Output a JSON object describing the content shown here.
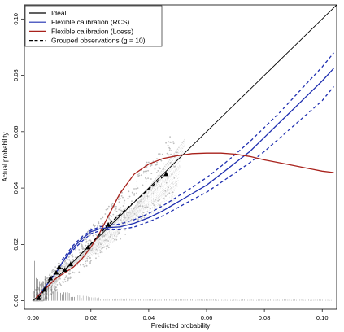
{
  "chart_data": {
    "type": "line",
    "xlabel": "Predicted probability",
    "ylabel": "Actual probability",
    "xlim": [
      -0.003,
      0.105
    ],
    "ylim": [
      -0.003,
      0.105
    ],
    "x_ticks": [
      "0.00",
      "0.02",
      "0.04",
      "0.06",
      "0.08",
      "0.10"
    ],
    "y_ticks": [
      "0.00",
      "0.02",
      "0.04",
      "0.06",
      "0.08",
      "0.10"
    ],
    "legend_position": "top-left",
    "legend": [
      {
        "label": "Ideal",
        "color": "#000000",
        "style": "solid"
      },
      {
        "label": "Flexible calibration (RCS)",
        "color": "#1f2fb0",
        "style": "solid"
      },
      {
        "label": "Flexible calibration (Loess)",
        "color": "#a8211b",
        "style": "solid"
      },
      {
        "label": "Grouped observations (g = 10)",
        "color": "#000000",
        "style": "dashed"
      }
    ],
    "series": [
      {
        "name": "Ideal",
        "color": "#000000",
        "x": [
          0,
          0.105
        ],
        "y": [
          0,
          0.105
        ]
      },
      {
        "name": "Flexible calibration (RCS)",
        "color": "#1f2fb0",
        "x": [
          0.002,
          0.005,
          0.008,
          0.011,
          0.014,
          0.017,
          0.02,
          0.023,
          0.026,
          0.03,
          0.035,
          0.04,
          0.045,
          0.05,
          0.055,
          0.06,
          0.065,
          0.07,
          0.075,
          0.08,
          0.085,
          0.09,
          0.095,
          0.1,
          0.104
        ],
        "y": [
          0.002,
          0.006,
          0.01,
          0.015,
          0.019,
          0.022,
          0.0245,
          0.0255,
          0.026,
          0.0262,
          0.0275,
          0.0295,
          0.032,
          0.035,
          0.038,
          0.041,
          0.045,
          0.049,
          0.053,
          0.058,
          0.063,
          0.068,
          0.073,
          0.078,
          0.0825
        ]
      },
      {
        "name": "RCS upper CI",
        "color": "#1f2fb0",
        "x": [
          0.01,
          0.014,
          0.017,
          0.02,
          0.023,
          0.026,
          0.03,
          0.035,
          0.04,
          0.045,
          0.05,
          0.055,
          0.06,
          0.065,
          0.07,
          0.075,
          0.08,
          0.085,
          0.09,
          0.095,
          0.1,
          0.104
        ],
        "y": [
          0.0145,
          0.0198,
          0.0228,
          0.025,
          0.0262,
          0.0268,
          0.0272,
          0.0288,
          0.031,
          0.0338,
          0.037,
          0.0402,
          0.0437,
          0.0477,
          0.052,
          0.0565,
          0.0615,
          0.0665,
          0.072,
          0.0775,
          0.083,
          0.088
        ]
      },
      {
        "name": "RCS lower CI",
        "color": "#1f2fb0",
        "x": [
          0.01,
          0.014,
          0.017,
          0.02,
          0.023,
          0.026,
          0.03,
          0.035,
          0.04,
          0.045,
          0.05,
          0.055,
          0.06,
          0.065,
          0.07,
          0.075,
          0.08,
          0.085,
          0.09,
          0.095,
          0.1,
          0.104
        ],
        "y": [
          0.0135,
          0.0182,
          0.0212,
          0.0238,
          0.0248,
          0.0252,
          0.0252,
          0.0262,
          0.028,
          0.0302,
          0.033,
          0.0358,
          0.0385,
          0.042,
          0.0455,
          0.049,
          0.053,
          0.0575,
          0.062,
          0.0665,
          0.071,
          0.076
        ]
      },
      {
        "name": "Flexible calibration (Loess)",
        "color": "#a8211b",
        "x": [
          0.001,
          0.003,
          0.005,
          0.008,
          0.011,
          0.014,
          0.017,
          0.02,
          0.023,
          0.026,
          0.03,
          0.035,
          0.04,
          0.045,
          0.05,
          0.055,
          0.06,
          0.065,
          0.07,
          0.075,
          0.08,
          0.085,
          0.09,
          0.095,
          0.1,
          0.104
        ],
        "y": [
          0.001,
          0.003,
          0.005,
          0.008,
          0.01,
          0.012,
          0.015,
          0.019,
          0.024,
          0.03,
          0.038,
          0.045,
          0.0485,
          0.0505,
          0.0515,
          0.0522,
          0.0524,
          0.0524,
          0.052,
          0.0512,
          0.05,
          0.049,
          0.048,
          0.047,
          0.046,
          0.0455
        ]
      },
      {
        "name": "Grouped observations (g = 10)",
        "color": "#000000",
        "dashed": true,
        "x": [
          0.002,
          0.004,
          0.006,
          0.008,
          0.009,
          0.011,
          0.013,
          0.019,
          0.026,
          0.046
        ],
        "y": [
          0.001,
          0.004,
          0.008,
          0.01,
          0.012,
          0.011,
          0.013,
          0.019,
          0.027,
          0.045
        ]
      }
    ],
    "grouped_points": {
      "x": [
        0.002,
        0.004,
        0.006,
        0.008,
        0.009,
        0.011,
        0.013,
        0.019,
        0.026,
        0.046
      ],
      "y": [
        0.001,
        0.004,
        0.008,
        0.01,
        0.012,
        0.011,
        0.013,
        0.019,
        0.027,
        0.045
      ]
    },
    "background": "bootstrap calibration curves (light grey) with scattered grey points and a spike histogram of predicted probabilities along the x-axis"
  }
}
